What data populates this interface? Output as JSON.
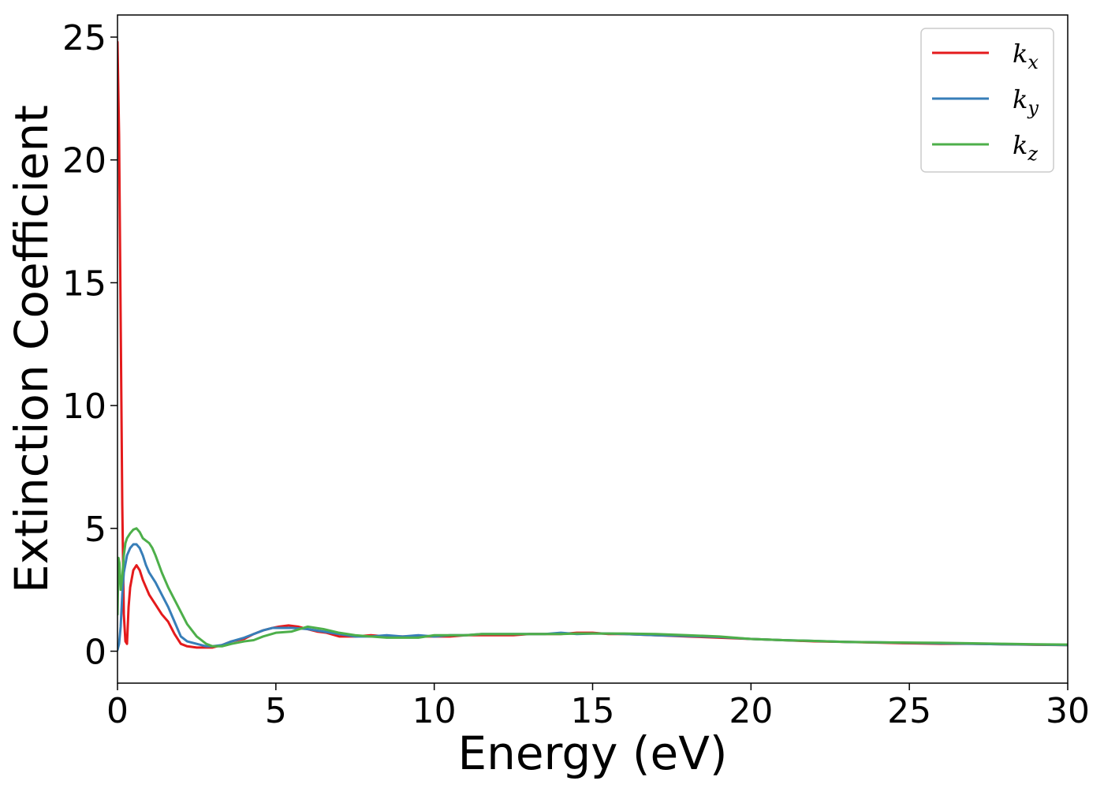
{
  "chart_data": {
    "type": "line",
    "title": "",
    "xlabel": "Energy (eV)",
    "ylabel": "Extinction Coefficient",
    "xlim": [
      0,
      30
    ],
    "ylim": [
      -1.3,
      25.9
    ],
    "xticks": [
      0,
      5,
      10,
      15,
      20,
      25,
      30
    ],
    "yticks": [
      0,
      5,
      10,
      15,
      20,
      25
    ],
    "xtick_labels": [
      "0",
      "5",
      "10",
      "15",
      "20",
      "25",
      "30"
    ],
    "ytick_labels": [
      "0",
      "5",
      "10",
      "15",
      "20",
      "25"
    ],
    "grid": false,
    "legend_position": "top-right",
    "series": [
      {
        "name": "kx",
        "label_main": "k",
        "label_sub": "x",
        "color": "#e41a1c",
        "x": [
          0,
          0.05,
          0.1,
          0.15,
          0.2,
          0.25,
          0.3,
          0.35,
          0.4,
          0.5,
          0.6,
          0.7,
          0.8,
          0.9,
          1.0,
          1.2,
          1.4,
          1.6,
          1.8,
          2.0,
          2.2,
          2.5,
          2.8,
          3.0,
          3.3,
          3.6,
          4.0,
          4.3,
          4.6,
          4.9,
          5.1,
          5.4,
          5.7,
          6.0,
          6.3,
          6.6,
          7.0,
          7.5,
          8.0,
          8.5,
          9.0,
          9.5,
          10.0,
          10.5,
          11.0,
          11.5,
          12.0,
          12.5,
          13.0,
          13.5,
          14.0,
          14.5,
          15.0,
          15.5,
          16.0,
          17.0,
          18.0,
          19.0,
          20.0,
          21.0,
          22.0,
          23.0,
          24.0,
          25.0,
          26.0,
          27.0,
          28.0,
          29.0,
          30.0
        ],
        "y": [
          24.8,
          21.0,
          13.5,
          6.0,
          1.5,
          0.4,
          0.3,
          1.8,
          2.6,
          3.3,
          3.5,
          3.3,
          2.9,
          2.6,
          2.3,
          1.9,
          1.5,
          1.2,
          0.7,
          0.3,
          0.2,
          0.15,
          0.15,
          0.15,
          0.25,
          0.4,
          0.5,
          0.7,
          0.85,
          0.95,
          1.0,
          1.05,
          1.0,
          0.9,
          0.8,
          0.75,
          0.6,
          0.6,
          0.65,
          0.6,
          0.6,
          0.6,
          0.6,
          0.6,
          0.65,
          0.65,
          0.65,
          0.65,
          0.7,
          0.7,
          0.7,
          0.75,
          0.75,
          0.7,
          0.7,
          0.65,
          0.6,
          0.55,
          0.5,
          0.45,
          0.4,
          0.38,
          0.35,
          0.32,
          0.3,
          0.3,
          0.28,
          0.26,
          0.25
        ]
      },
      {
        "name": "ky",
        "label_main": "k",
        "label_sub": "y",
        "color": "#377eb8",
        "x": [
          0,
          0.05,
          0.1,
          0.15,
          0.2,
          0.3,
          0.4,
          0.5,
          0.6,
          0.7,
          0.8,
          0.9,
          1.0,
          1.2,
          1.4,
          1.6,
          1.8,
          2.0,
          2.2,
          2.5,
          2.8,
          3.0,
          3.3,
          3.6,
          4.0,
          4.3,
          4.6,
          4.9,
          5.2,
          5.5,
          6.0,
          6.5,
          7.0,
          7.5,
          8.0,
          8.5,
          9.0,
          9.5,
          10.0,
          10.5,
          11.0,
          11.5,
          12.0,
          12.5,
          13.0,
          13.5,
          14.0,
          14.5,
          15.0,
          15.5,
          16.0,
          17.0,
          18.0,
          19.0,
          20.0,
          21.0,
          22.0,
          23.0,
          24.0,
          25.0,
          26.0,
          27.0,
          28.0,
          29.0,
          30.0
        ],
        "y": [
          0.05,
          0.3,
          1.0,
          2.3,
          3.2,
          3.9,
          4.2,
          4.35,
          4.35,
          4.2,
          3.9,
          3.5,
          3.2,
          2.8,
          2.3,
          1.8,
          1.2,
          0.6,
          0.4,
          0.3,
          0.2,
          0.2,
          0.25,
          0.4,
          0.55,
          0.7,
          0.85,
          0.95,
          0.95,
          0.95,
          0.9,
          0.8,
          0.7,
          0.6,
          0.6,
          0.65,
          0.6,
          0.65,
          0.6,
          0.65,
          0.65,
          0.7,
          0.7,
          0.7,
          0.7,
          0.7,
          0.75,
          0.7,
          0.72,
          0.72,
          0.7,
          0.65,
          0.62,
          0.58,
          0.5,
          0.45,
          0.42,
          0.38,
          0.36,
          0.34,
          0.32,
          0.3,
          0.28,
          0.27,
          0.25
        ]
      },
      {
        "name": "kz",
        "label_main": "k",
        "label_sub": "z",
        "color": "#4daf4a",
        "x": [
          0,
          0.03,
          0.06,
          0.1,
          0.15,
          0.2,
          0.25,
          0.3,
          0.4,
          0.5,
          0.6,
          0.7,
          0.8,
          0.9,
          1.0,
          1.1,
          1.2,
          1.4,
          1.6,
          1.8,
          2.0,
          2.2,
          2.5,
          2.8,
          3.0,
          3.3,
          3.6,
          4.0,
          4.3,
          4.6,
          5.0,
          5.5,
          6.0,
          6.5,
          7.0,
          7.5,
          8.0,
          8.5,
          9.0,
          9.5,
          10.0,
          10.5,
          11.0,
          11.5,
          12.0,
          12.5,
          13.0,
          13.5,
          14.0,
          14.5,
          15.0,
          15.5,
          16.0,
          17.0,
          18.0,
          19.0,
          20.0,
          21.0,
          22.0,
          23.0,
          24.0,
          25.0,
          26.0,
          27.0,
          28.0,
          29.0,
          30.0
        ],
        "y": [
          1.5,
          3.8,
          3.6,
          2.5,
          3.0,
          3.9,
          4.4,
          4.6,
          4.8,
          4.95,
          5.0,
          4.85,
          4.6,
          4.5,
          4.4,
          4.2,
          3.9,
          3.2,
          2.6,
          2.1,
          1.6,
          1.1,
          0.6,
          0.3,
          0.2,
          0.2,
          0.3,
          0.4,
          0.45,
          0.6,
          0.75,
          0.8,
          1.0,
          0.9,
          0.75,
          0.65,
          0.6,
          0.55,
          0.55,
          0.55,
          0.65,
          0.65,
          0.65,
          0.7,
          0.7,
          0.7,
          0.7,
          0.7,
          0.7,
          0.72,
          0.72,
          0.72,
          0.72,
          0.7,
          0.65,
          0.6,
          0.5,
          0.45,
          0.42,
          0.38,
          0.36,
          0.35,
          0.34,
          0.32,
          0.3,
          0.28,
          0.27
        ]
      }
    ]
  }
}
